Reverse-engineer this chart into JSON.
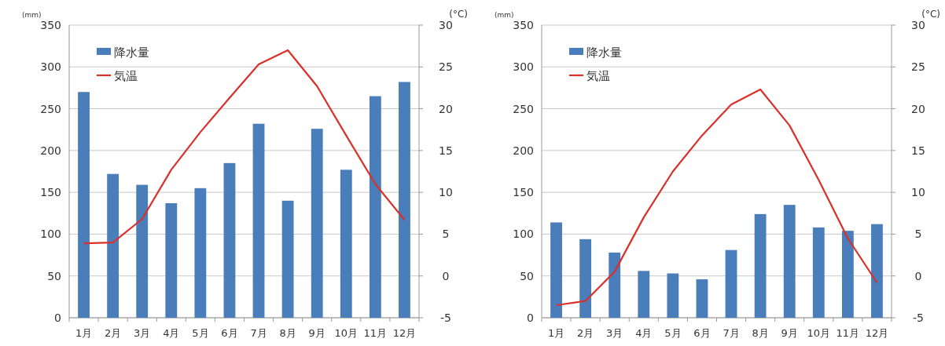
{
  "chart_data": [
    {
      "type": "bar",
      "categories": [
        "1月",
        "2月",
        "3月",
        "4月",
        "5月",
        "6月",
        "7月",
        "8月",
        "9月",
        "10月",
        "11月",
        "12月"
      ],
      "ylabel": "(mm)",
      "y2label": "(°C)",
      "ylim": [
        0,
        350
      ],
      "yticks": [
        0,
        50,
        100,
        150,
        200,
        250,
        300,
        350
      ],
      "y2lim": [
        -5,
        30
      ],
      "y2ticks": [
        -5,
        0,
        5,
        10,
        15,
        20,
        25,
        30
      ],
      "grid": "y",
      "legend": "top left",
      "series": [
        {
          "name": "降水量",
          "color": "#4a7ebb",
          "values": [
            270,
            172,
            159,
            137,
            155,
            185,
            232,
            140,
            226,
            177,
            265,
            282
          ]
        },
        {
          "name": "気温",
          "type": "line",
          "axis": "y2",
          "color": "#d9302a",
          "values": [
            3.9,
            4.0,
            6.8,
            12.7,
            17.2,
            21.3,
            25.3,
            27.0,
            22.7,
            16.8,
            11.0,
            6.7
          ]
        }
      ]
    },
    {
      "type": "bar",
      "categories": [
        "1月",
        "2月",
        "3月",
        "4月",
        "5月",
        "6月",
        "7月",
        "8月",
        "9月",
        "10月",
        "11月",
        "12月"
      ],
      "ylabel": "(mm)",
      "y2label": "(°C)",
      "ylim": [
        0,
        350
      ],
      "yticks": [
        0,
        50,
        100,
        150,
        200,
        250,
        300,
        350
      ],
      "y2lim": [
        -5,
        30
      ],
      "y2ticks": [
        -5,
        0,
        5,
        10,
        15,
        20,
        25,
        30
      ],
      "grid": "y",
      "legend": "top left",
      "series": [
        {
          "name": "降水量",
          "color": "#4a7ebb",
          "values": [
            114,
            94,
            78,
            56,
            53,
            46,
            81,
            124,
            135,
            108,
            104,
            112
          ]
        },
        {
          "name": "気温",
          "type": "line",
          "axis": "y2",
          "color": "#d9302a",
          "values": [
            -3.5,
            -3.0,
            0.5,
            7.0,
            12.5,
            16.8,
            20.5,
            22.3,
            18.0,
            11.5,
            4.5,
            -0.8
          ]
        }
      ]
    }
  ]
}
